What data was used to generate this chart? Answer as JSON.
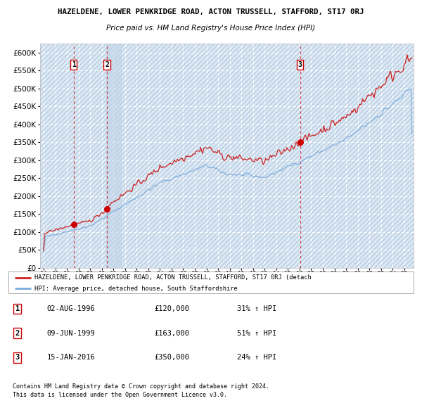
{
  "title": "HAZELDENE, LOWER PENKRIDGE ROAD, ACTON TRUSSELL, STAFFORD, ST17 0RJ",
  "subtitle": "Price paid vs. HM Land Registry's House Price Index (HPI)",
  "ytick_values": [
    0,
    50000,
    100000,
    150000,
    200000,
    250000,
    300000,
    350000,
    400000,
    450000,
    500000,
    550000,
    600000
  ],
  "ylim": [
    0,
    625000
  ],
  "xlim_start": 1993.7,
  "xlim_end": 2025.8,
  "sale_dates": [
    1996.585,
    1999.44,
    2016.04
  ],
  "sale_prices": [
    120000,
    163000,
    350000
  ],
  "sale_labels": [
    "1",
    "2",
    "3"
  ],
  "hpi_color": "#7aaadd",
  "price_color": "#cc2222",
  "dot_color": "#cc0000",
  "legend_price_label": "HAZELDENE, LOWER PENKRIDGE ROAD, ACTON TRUSSELL, STAFFORD, ST17 0RJ (detach",
  "legend_hpi_label": "HPI: Average price, detached house, South Staffordshire",
  "table_rows": [
    [
      "1",
      "02-AUG-1996",
      "£120,000",
      "31% ↑ HPI"
    ],
    [
      "2",
      "09-JUN-1999",
      "£163,000",
      "51% ↑ HPI"
    ],
    [
      "3",
      "15-JAN-2016",
      "£350,000",
      "24% ↑ HPI"
    ]
  ],
  "footnote1": "Contains HM Land Registry data © Crown copyright and database right 2024.",
  "footnote2": "This data is licensed under the Open Government Licence v3.0.",
  "plot_bg_color": "#dce9f5",
  "grid_color": "#ffffff",
  "shaded_color": "#c0d4e8"
}
